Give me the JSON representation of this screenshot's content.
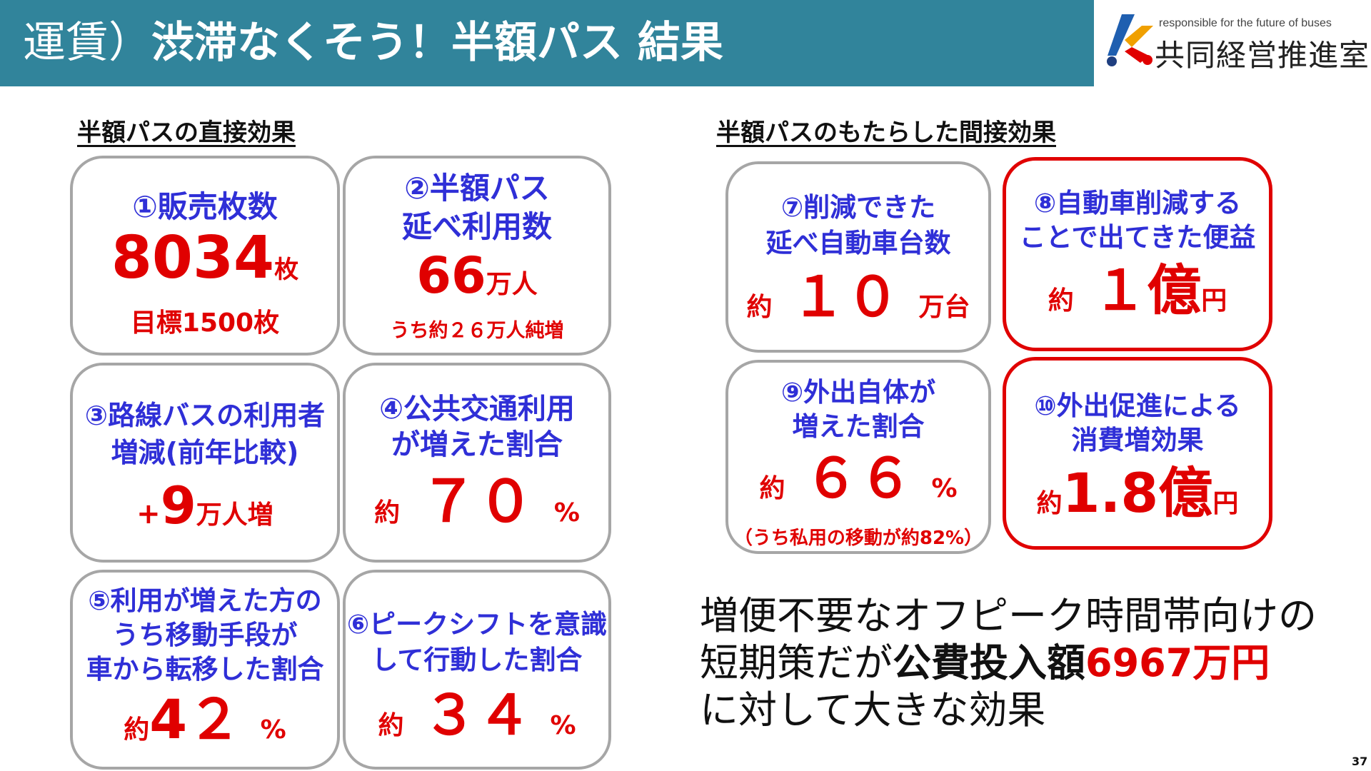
{
  "header": {
    "title_prefix": "運賃）",
    "title_main": "渋滞なくそう！半額パス 結果",
    "bg_color": "#31849b"
  },
  "logo": {
    "tagline": "responsible for the future of buses",
    "name": "共同経営推進室"
  },
  "direct": {
    "title": "半額パスの直接効果",
    "cards": [
      {
        "label": "①販売枚数",
        "value": "8034",
        "unit": "枚",
        "sub": "目標1500枚"
      },
      {
        "label_1": "②半額パス",
        "label_2": "延べ利用数",
        "value": "66",
        "unit": "万人",
        "sub": "うち約２６万人純増"
      },
      {
        "label_1": "③路線バスの利用者",
        "label_2": "増減(前年比較)",
        "prefix": "+",
        "value": "9",
        "unit": "万人増"
      },
      {
        "label_1": "④公共交通利用",
        "label_2": "が増えた割合",
        "prefix": "約",
        "value": "７０",
        "unit": "%"
      },
      {
        "label_1": "⑤利用が増えた方の",
        "label_2": "うち移動手段が",
        "label_3": "車から転移した割合",
        "prefix": "約",
        "value": "4２",
        "unit": "%"
      },
      {
        "label_1": "⑥ピークシフトを意識",
        "label_2": "して行動した割合",
        "prefix": "約",
        "value": "３４",
        "unit": "%"
      }
    ]
  },
  "indirect": {
    "title": "半額パスのもたらした間接効果",
    "cards": [
      {
        "label_1": "⑦削減できた",
        "label_2": "延べ自動車台数",
        "prefix": "約",
        "value": "１０",
        "unit": "万台"
      },
      {
        "label_1": "⑧自動車削減する",
        "label_2": "ことで出てきた便益",
        "prefix": "約",
        "value": "１億",
        "unit": "円"
      },
      {
        "label_1": "⑨外出自体が",
        "label_2": "増えた割合",
        "prefix": "約",
        "value": "６６",
        "unit": "%",
        "sub": "（うち私用の移動が約82%）"
      },
      {
        "label_1": "⑩外出促進による",
        "label_2": "消費増効果",
        "prefix": "約",
        "value": "1.8億",
        "unit": "円"
      }
    ]
  },
  "summary": {
    "line1": "増便不要なオフピーク時間帯向けの",
    "line2_pre": "短期策だが",
    "line2_bold": "公費投入額",
    "line2_red": "6967万円",
    "line3": "に対して大きな効果"
  },
  "page_number": "37",
  "colors": {
    "accent_red": "#e00000",
    "label_blue": "#2f2fd7",
    "card_border": "#a6a6a6"
  }
}
